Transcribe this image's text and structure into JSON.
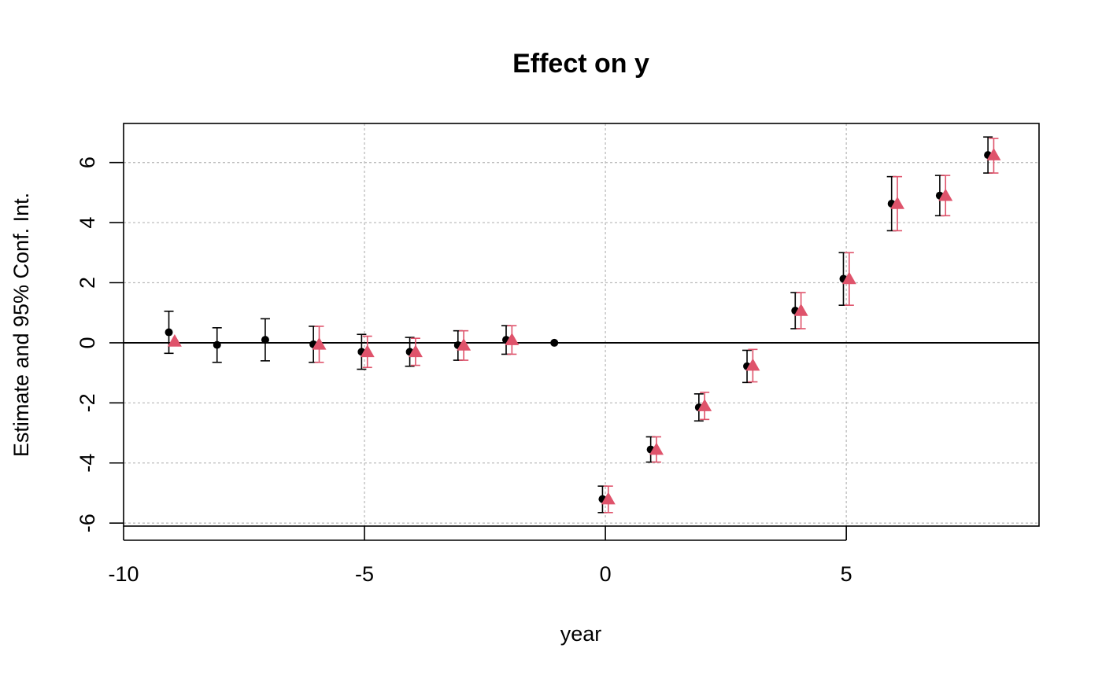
{
  "chart_data": {
    "type": "scatter",
    "title": "Effect on y",
    "xlabel": "year",
    "ylabel": "Estimate and 95% Conf. Int.",
    "xlim": [
      -10,
      9
    ],
    "ylim": [
      -6.1,
      7.3
    ],
    "grid": true,
    "reference_line_y": 0,
    "x_ticks": [
      -10,
      -5,
      0,
      5
    ],
    "y_ticks": [
      -6,
      -4,
      -2,
      0,
      2,
      4,
      6
    ],
    "series": [
      {
        "marker": "circle",
        "color": "#000000",
        "points": [
          {
            "x": -9,
            "y": 0.35,
            "lo": -0.35,
            "hi": 1.05
          },
          {
            "x": -8,
            "y": -0.07,
            "lo": -0.65,
            "hi": 0.5
          },
          {
            "x": -7,
            "y": 0.1,
            "lo": -0.6,
            "hi": 0.8
          },
          {
            "x": -6,
            "y": -0.05,
            "lo": -0.65,
            "hi": 0.55
          },
          {
            "x": -5,
            "y": -0.3,
            "lo": -0.88,
            "hi": 0.28
          },
          {
            "x": -4,
            "y": -0.3,
            "lo": -0.78,
            "hi": 0.18
          },
          {
            "x": -3,
            "y": -0.08,
            "lo": -0.58,
            "hi": 0.4
          },
          {
            "x": -2,
            "y": 0.1,
            "lo": -0.38,
            "hi": 0.57
          },
          {
            "x": -1,
            "y": 0,
            "lo": null,
            "hi": null
          },
          {
            "x": 0,
            "y": -5.2,
            "lo": -5.65,
            "hi": -4.77
          },
          {
            "x": 1,
            "y": -3.55,
            "lo": -3.97,
            "hi": -3.13
          },
          {
            "x": 2,
            "y": -2.15,
            "lo": -2.6,
            "hi": -1.7
          },
          {
            "x": 3,
            "y": -0.78,
            "lo": -1.32,
            "hi": -0.25
          },
          {
            "x": 4,
            "y": 1.07,
            "lo": 0.47,
            "hi": 1.67
          },
          {
            "x": 5,
            "y": 2.13,
            "lo": 1.25,
            "hi": 3.0
          },
          {
            "x": 6,
            "y": 4.63,
            "lo": 3.73,
            "hi": 5.53
          },
          {
            "x": 7,
            "y": 4.9,
            "lo": 4.23,
            "hi": 5.57
          },
          {
            "x": 8,
            "y": 6.25,
            "lo": 5.65,
            "hi": 6.85
          }
        ]
      },
      {
        "marker": "triangle",
        "color": "#DF536B",
        "points": [
          {
            "x": -9,
            "y": 0.05,
            "lo": null,
            "hi": null
          },
          {
            "x": -6,
            "y": -0.05,
            "lo": -0.65,
            "hi": 0.55
          },
          {
            "x": -5,
            "y": -0.3,
            "lo": -0.82,
            "hi": 0.22
          },
          {
            "x": -4,
            "y": -0.3,
            "lo": -0.75,
            "hi": 0.15
          },
          {
            "x": -3,
            "y": -0.08,
            "lo": -0.58,
            "hi": 0.4
          },
          {
            "x": -2,
            "y": 0.1,
            "lo": -0.38,
            "hi": 0.57
          },
          {
            "x": 0,
            "y": -5.2,
            "lo": -5.65,
            "hi": -4.77
          },
          {
            "x": 1,
            "y": -3.55,
            "lo": -3.97,
            "hi": -3.13
          },
          {
            "x": 2,
            "y": -2.1,
            "lo": -2.55,
            "hi": -1.65
          },
          {
            "x": 3,
            "y": -0.75,
            "lo": -1.3,
            "hi": -0.22
          },
          {
            "x": 4,
            "y": 1.07,
            "lo": 0.47,
            "hi": 1.67
          },
          {
            "x": 5,
            "y": 2.13,
            "lo": 1.25,
            "hi": 3.0
          },
          {
            "x": 6,
            "y": 4.63,
            "lo": 3.73,
            "hi": 5.53
          },
          {
            "x": 7,
            "y": 4.9,
            "lo": 4.23,
            "hi": 5.57
          },
          {
            "x": 8,
            "y": 6.25,
            "lo": 5.65,
            "hi": 6.8
          }
        ]
      }
    ]
  }
}
